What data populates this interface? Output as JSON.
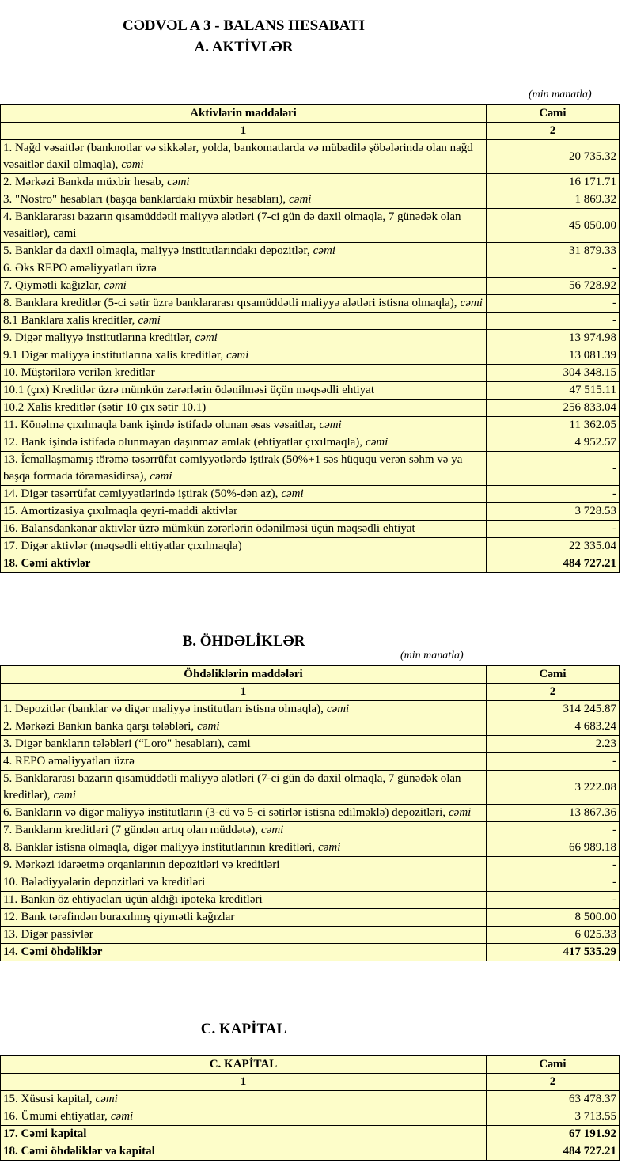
{
  "title": [
    "CƏDVƏL A 3 - BALANS HESABATI",
    "A. AKTİVLƏR"
  ],
  "sections": [
    {
      "unit": "(min manatla)",
      "columns": [
        "Aktivlərin   maddələri",
        "Cəmi"
      ],
      "column_numbers": [
        "1",
        "2"
      ],
      "rows": [
        {
          "label": "1. Nağd vəsaitlər (banknotlar və sikkələr, yolda, bankomatlarda və mübadilə şöbələrində olan nağd vəsaitlər daxil olmaqla),",
          "suffix": "cəmi",
          "value": "20 735.32"
        },
        {
          "label": "2. Mərkəzi Bankda müxbir hesab,",
          "suffix": "cəmi",
          "value": "16 171.71"
        },
        {
          "label": "3. \"Nostro\" hesabları (başqa banklardakı müxbir hesabları),",
          "suffix": "cəmi",
          "value": "1 869.32"
        },
        {
          "label": "4. Banklararası bazarın qısamüddətli maliyyə alətləri (7-ci gün də daxil olmaqla, 7 günədək olan vəsaitlər), cəmi",
          "value": "45 050.00"
        },
        {
          "label": "5. Banklar da daxil olmaqla, maliyyə institutlarındakı depozitlər,",
          "suffix": "cəmi",
          "value": "31 879.33"
        },
        {
          "label": "6. Əks REPO əməliyyatları üzrə",
          "value": "-"
        },
        {
          "label": "7. Qiymətli kağızlar,",
          "suffix": "cəmi",
          "value": "56 728.92"
        },
        {
          "label": "8. Banklara kreditlər (5-ci sətir üzrə banklararası qısamüddətli maliyyə alətləri istisna olmaqla),",
          "suffix": "cəmi",
          "value": "-"
        },
        {
          "label": "8.1 Banklara xalis kreditlər,",
          "suffix": "cəmi",
          "value": "-"
        },
        {
          "label": "9. Digər maliyyə institutlarına kreditlər,",
          "suffix": "cəmi",
          "value": "13 974.98"
        },
        {
          "label": "9.1 Digər maliyyə institutlarına xalis kreditlər,",
          "suffix": "cəmi",
          "value": "13 081.39"
        },
        {
          "label": "10. Müştərilərə verilən kreditlər",
          "value": "304 348.15"
        },
        {
          "label": "10.1 (çıx) Kreditlər üzrə mümkün zərərlərin ödənilməsi üçün məqsədli ehtiyat",
          "value": "47 515.11"
        },
        {
          "label": "10.2 Xalis kreditlər (sətir 10 çıx sətir 10.1)",
          "value": "256 833.04"
        },
        {
          "label": "11. Könəlmə çıxılmaqla bank işində istifadə olunan əsas vəsaitlər,",
          "suffix": "cəmi",
          "value": "11 362.05"
        },
        {
          "label": "12. Bank işində istifadə olunmayan daşınmaz əmlak (ehtiyatlar çıxılmaqla),",
          "suffix": "cəmi",
          "value": "4 952.57"
        },
        {
          "label": "13. İcmallaşmamış törəmə təsərrüfat cəmiyyətlərdə iştirak (50%+1 səs hüququ verən səhm və ya başqa formada törəməsidirsə),",
          "suffix": "cəmi",
          "value": "-"
        },
        {
          "label": "14. Digər təsərrüfat cəmiyyətlərində iştirak (50%-dən az),",
          "suffix": "cəmi",
          "value": "-"
        },
        {
          "label": "15. Amortizasiya çıxılmaqla qeyri-maddi aktivlər",
          "value": "3 728.53"
        },
        {
          "label": "16. Balansdankənar aktivlər üzrə mümkün zərərlərin ödənilməsi üçün məqsədli ehtiyat",
          "value": "-"
        },
        {
          "label": "17. Digər aktivlər (məqsədli ehtiyatlar çıxılmaqla)",
          "value": "22 335.04"
        },
        {
          "label": "18. Cəmi aktivlər",
          "value": "484 727.21",
          "bold": true
        }
      ]
    },
    {
      "heading": "B. ÖHDƏLİKLƏR",
      "unit": "(min manatla)",
      "columns": [
        "Öhdəliklərin maddələri",
        "Cəmi"
      ],
      "column_numbers": [
        "1",
        "2"
      ],
      "rows": [
        {
          "label": "1. Depozitlər (banklar və digər maliyyə institutları istisna olmaqla),",
          "suffix": "cəmi",
          "value": "314 245.87"
        },
        {
          "label": "2. Mərkəzi Bankın banka qarşı tələbləri,",
          "suffix": "cəmi",
          "value": "4 683.24"
        },
        {
          "label": "3. Digər bankların tələbləri (“Loro\" hesabları), cəmi",
          "value": "2.23"
        },
        {
          "label": "4. REPO əməliyyatları  üzrə",
          "value": "-"
        },
        {
          "label": "5. Banklararası bazarın qısamüddətli maliyyə alətləri (7-ci gün də daxil olmaqla, 7 günədək olan kreditlər),",
          "suffix": "cəmi",
          "value": "3 222.08"
        },
        {
          "label": "6. Bankların və digər maliyyə institutların (3-cü və 5-ci sətirlər istisna edilməklə) depozitləri,",
          "suffix": "cəmi",
          "value": "13 867.36"
        },
        {
          "label": "7. Bankların kreditləri (7 gündən artıq olan müddətə),",
          "suffix": "cəmi",
          "value": "-"
        },
        {
          "label": "8. Banklar istisna olmaqla, digər maliyyə institutlarının kreditləri,",
          "suffix": "cəmi",
          "value": "66 989.18"
        },
        {
          "label": "9. Mərkəzi idarəetmə orqanlarının depozitləri və kreditləri",
          "value": "-"
        },
        {
          "label": "10. Bələdiyyələrin depozitləri və kreditləri",
          "value": "-"
        },
        {
          "label": "11. Bankın öz ehtiyacları üçün aldığı ipoteka kreditləri",
          "value": "-"
        },
        {
          "label": "12. Bank tərəfindən buraxılmış qiymətli kağızlar",
          "value": "8 500.00"
        },
        {
          "label": "13. Digər passivlər",
          "value": "6 025.33"
        },
        {
          "label": "14. Cəmi öhdəliklər",
          "value": "417 535.29",
          "bold": true
        }
      ]
    },
    {
      "heading": "C. KAPİTAL",
      "columns": [
        "C. KAPİTAL",
        "Cəmi"
      ],
      "column_numbers": [
        "1",
        "2"
      ],
      "rows": [
        {
          "label": "15. Xüsusi kapital,",
          "suffix": "cəmi",
          "value": "63 478.37"
        },
        {
          "label": "16. Ümumi ehtiyatlar,",
          "suffix": "cəmi",
          "value": "3 713.55"
        },
        {
          "label": "17. Cəmi kapital",
          "value": "67 191.92",
          "bold": true
        },
        {
          "label": "18. Cəmi öhdəliklər və kapital",
          "value": "484 727.21",
          "bold": true
        }
      ]
    }
  ]
}
